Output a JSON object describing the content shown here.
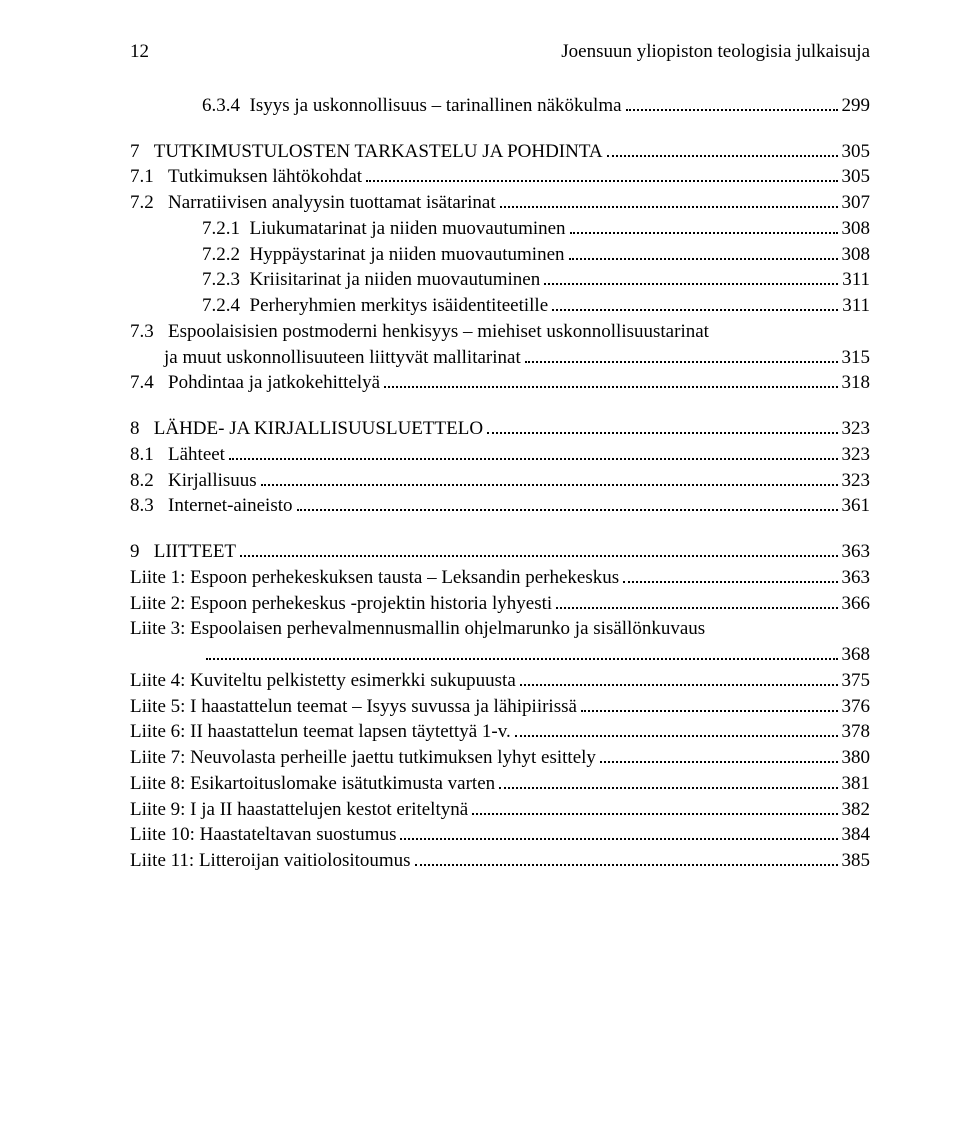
{
  "header": {
    "page_number": "12",
    "running_title": "Joensuun yliopiston teologisia julkaisuja"
  },
  "sections": [
    {
      "lines": [
        {
          "num": "6.3.4",
          "label": "Isyys ja uskonnollisuus – tarinallinen näkökulma",
          "page": "299",
          "indent": 2
        }
      ]
    },
    {
      "lines": [
        {
          "num": "7",
          "label": "TUTKIMUSTULOSTEN TARKASTELU JA POHDINTA",
          "page": "305",
          "indent": 0
        },
        {
          "num": "7.1",
          "label": "Tutkimuksen lähtökohdat",
          "page": "305",
          "indent": 0
        },
        {
          "num": "7.2",
          "label": "Narratiivisen analyysin tuottamat isätarinat",
          "page": "307",
          "indent": 0
        },
        {
          "num": "7.2.1",
          "label": "Liukumatarinat ja niiden muovautuminen",
          "page": "308",
          "indent": 2
        },
        {
          "num": "7.2.2",
          "label": "Hyppäystarinat ja niiden muovautuminen",
          "page": "308",
          "indent": 2
        },
        {
          "num": "7.2.3",
          "label": "Kriisitarinat ja niiden muovautuminen",
          "page": "311",
          "indent": 2
        },
        {
          "num": "7.2.4",
          "label": "Perheryhmien merkitys isäidentiteetille",
          "page": "311",
          "indent": 2
        },
        {
          "num": "7.3",
          "label_lines": [
            "Espoolaisisien postmoderni henkisyys – miehiset uskonnollisuustarinat",
            "ja muut uskonnollisuuteen liittyvät mallitarinat"
          ],
          "page": "315",
          "indent": 0
        },
        {
          "num": "7.4",
          "label": "Pohdintaa ja jatkokehittelyä",
          "page": "318",
          "indent": 0
        }
      ]
    },
    {
      "lines": [
        {
          "num": "8",
          "label": "LÄHDE- JA KIRJALLISUUSLUETTELO",
          "page": "323",
          "indent": 0
        },
        {
          "num": "8.1",
          "label": "Lähteet",
          "page": "323",
          "indent": 0
        },
        {
          "num": "8.2",
          "label": "Kirjallisuus",
          "page": "323",
          "indent": 0
        },
        {
          "num": "8.3",
          "label": "Internet-aineisto",
          "page": "361",
          "indent": 0
        }
      ]
    },
    {
      "lines": [
        {
          "num": "9",
          "label": "LIITTEET",
          "page": "363",
          "indent": 0
        },
        {
          "num": "",
          "label": "Liite 1: Espoon perhekeskuksen tausta – Leksandin perhekeskus",
          "page": "363",
          "indent": 0,
          "no_num": true
        },
        {
          "num": "",
          "label": "Liite 2: Espoon perhekeskus -projektin historia lyhyesti",
          "page": "366",
          "indent": 0,
          "no_num": true
        },
        {
          "num": "",
          "label_lines": [
            "Liite 3: Espoolaisen perhevalmennusmallin ohjelmarunko ja sisällönkuvaus",
            ""
          ],
          "page": "368",
          "indent": 0,
          "no_num": true,
          "cont_indent": 2
        },
        {
          "num": "",
          "label": "Liite 4: Kuviteltu pelkistetty esimerkki sukupuusta",
          "page": "375",
          "indent": 0,
          "no_num": true
        },
        {
          "num": "",
          "label": "Liite 5: I haastattelun teemat – Isyys suvussa ja lähipiirissä",
          "page": "376",
          "indent": 0,
          "no_num": true
        },
        {
          "num": "",
          "label": "Liite 6: II haastattelun teemat lapsen täytettyä 1-v.",
          "page": "378",
          "indent": 0,
          "no_num": true
        },
        {
          "num": "",
          "label": "Liite 7: Neuvolasta perheille jaettu tutkimuksen lyhyt esittely",
          "page": "380",
          "indent": 0,
          "no_num": true
        },
        {
          "num": "",
          "label": "Liite 8: Esikartoituslomake isätutkimusta varten",
          "page": "381",
          "indent": 0,
          "no_num": true
        },
        {
          "num": "",
          "label": "Liite 9: I ja II haastattelujen kestot eriteltynä",
          "page": "382",
          "indent": 0,
          "no_num": true
        },
        {
          "num": "",
          "label": "Liite 10: Haastateltavan suostumus",
          "page": "384",
          "indent": 0,
          "no_num": true
        },
        {
          "num": "",
          "label": "Liite 11: Litteroijan vaitiolositoumus",
          "page": "385",
          "indent": 0,
          "no_num": true
        }
      ]
    }
  ]
}
